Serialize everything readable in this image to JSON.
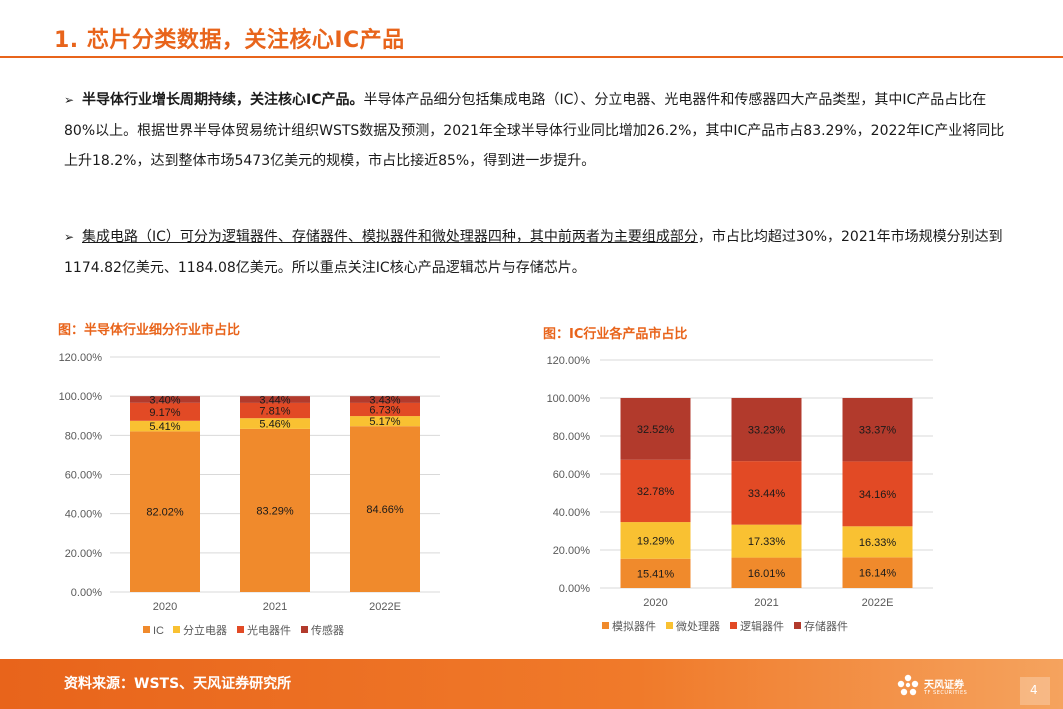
{
  "header": {
    "title": "1. 芯片分类数据，关注核心IC产品"
  },
  "body": {
    "bullet_symbol": "➢",
    "p1_lead": "半导体行业增长周期持续，关注核心IC产品。",
    "p1_text": "半导体产品细分包括集成电路（IC）、分立电器、光电器件和传感器四大产品类型，其中IC产品占比在80%以上。根据世界半导体贸易统计组织WSTS数据及预测，2021年全球半导体行业同比增加26.2%，其中IC产品市占83.29%，2022年IC产业将同比上升18.2%，达到整体市场5473亿美元的规模，市占比接近85%，得到进一步提升。",
    "p2_underlined": "集成电路（IC）可分为逻辑器件、存储器件、模拟器件和微处理器四种，其中前两者为主要组成部分",
    "p2_text": "，市占比均超过30%，2021年市场规模分别达到1174.82亿美元、1184.08亿美元。所以重点关注IC核心产品逻辑芯片与存储芯片。"
  },
  "footer": {
    "source": "资料来源：WSTS、天风证券研究所",
    "logo_name": "天风证券",
    "logo_sub": "TF SECURITIES",
    "page_number": "4"
  },
  "chart_data": [
    {
      "type": "bar",
      "stacked": true,
      "title": "图：半导体行业细分行业市占比",
      "categories": [
        "2020",
        "2021",
        "2022E"
      ],
      "ylim": [
        0,
        120
      ],
      "yticks": [
        "0.00%",
        "20.00%",
        "40.00%",
        "60.00%",
        "80.00%",
        "100.00%",
        "120.00%"
      ],
      "series": [
        {
          "name": "IC",
          "color": "#f08a2c",
          "values": [
            82.02,
            83.29,
            84.66
          ],
          "labels": [
            "82.02%",
            "83.29%",
            "84.66%"
          ]
        },
        {
          "name": "分立电器",
          "color": "#f9c132",
          "values": [
            5.41,
            5.46,
            5.17
          ],
          "labels": [
            "5.41%",
            "5.46%",
            "5.17%"
          ]
        },
        {
          "name": "光电器件",
          "color": "#e24a25",
          "values": [
            9.17,
            7.81,
            6.73
          ],
          "labels": [
            "9.17%",
            "7.81%",
            "6.73%"
          ]
        },
        {
          "name": "传感器",
          "color": "#b23a2c",
          "values": [
            3.4,
            3.44,
            3.43
          ],
          "labels": [
            "3.40%",
            "3.44%",
            "3.43%"
          ]
        }
      ],
      "grid": true,
      "legend": "bottom"
    },
    {
      "type": "bar",
      "stacked": true,
      "title": "图：IC行业各产品市占比",
      "categories": [
        "2020",
        "2021",
        "2022E"
      ],
      "ylim": [
        0,
        120
      ],
      "yticks": [
        "0.00%",
        "20.00%",
        "40.00%",
        "60.00%",
        "80.00%",
        "100.00%",
        "120.00%"
      ],
      "series": [
        {
          "name": "模拟器件",
          "color": "#f08a2c",
          "values": [
            15.41,
            16.01,
            16.14
          ],
          "labels": [
            "15.41%",
            "16.01%",
            "16.14%"
          ]
        },
        {
          "name": "微处理器",
          "color": "#f9c132",
          "values": [
            19.29,
            17.33,
            16.33
          ],
          "labels": [
            "19.29%",
            "17.33%",
            "16.33%"
          ]
        },
        {
          "name": "逻辑器件",
          "color": "#e24a25",
          "values": [
            32.78,
            33.44,
            34.16
          ],
          "labels": [
            "32.78%",
            "33.44%",
            "34.16%"
          ]
        },
        {
          "name": "存储器件",
          "color": "#b23a2c",
          "values": [
            32.52,
            33.23,
            33.37
          ],
          "labels": [
            "32.52%",
            "33.23%",
            "33.37%"
          ]
        }
      ],
      "grid": true,
      "legend": "bottom"
    }
  ]
}
